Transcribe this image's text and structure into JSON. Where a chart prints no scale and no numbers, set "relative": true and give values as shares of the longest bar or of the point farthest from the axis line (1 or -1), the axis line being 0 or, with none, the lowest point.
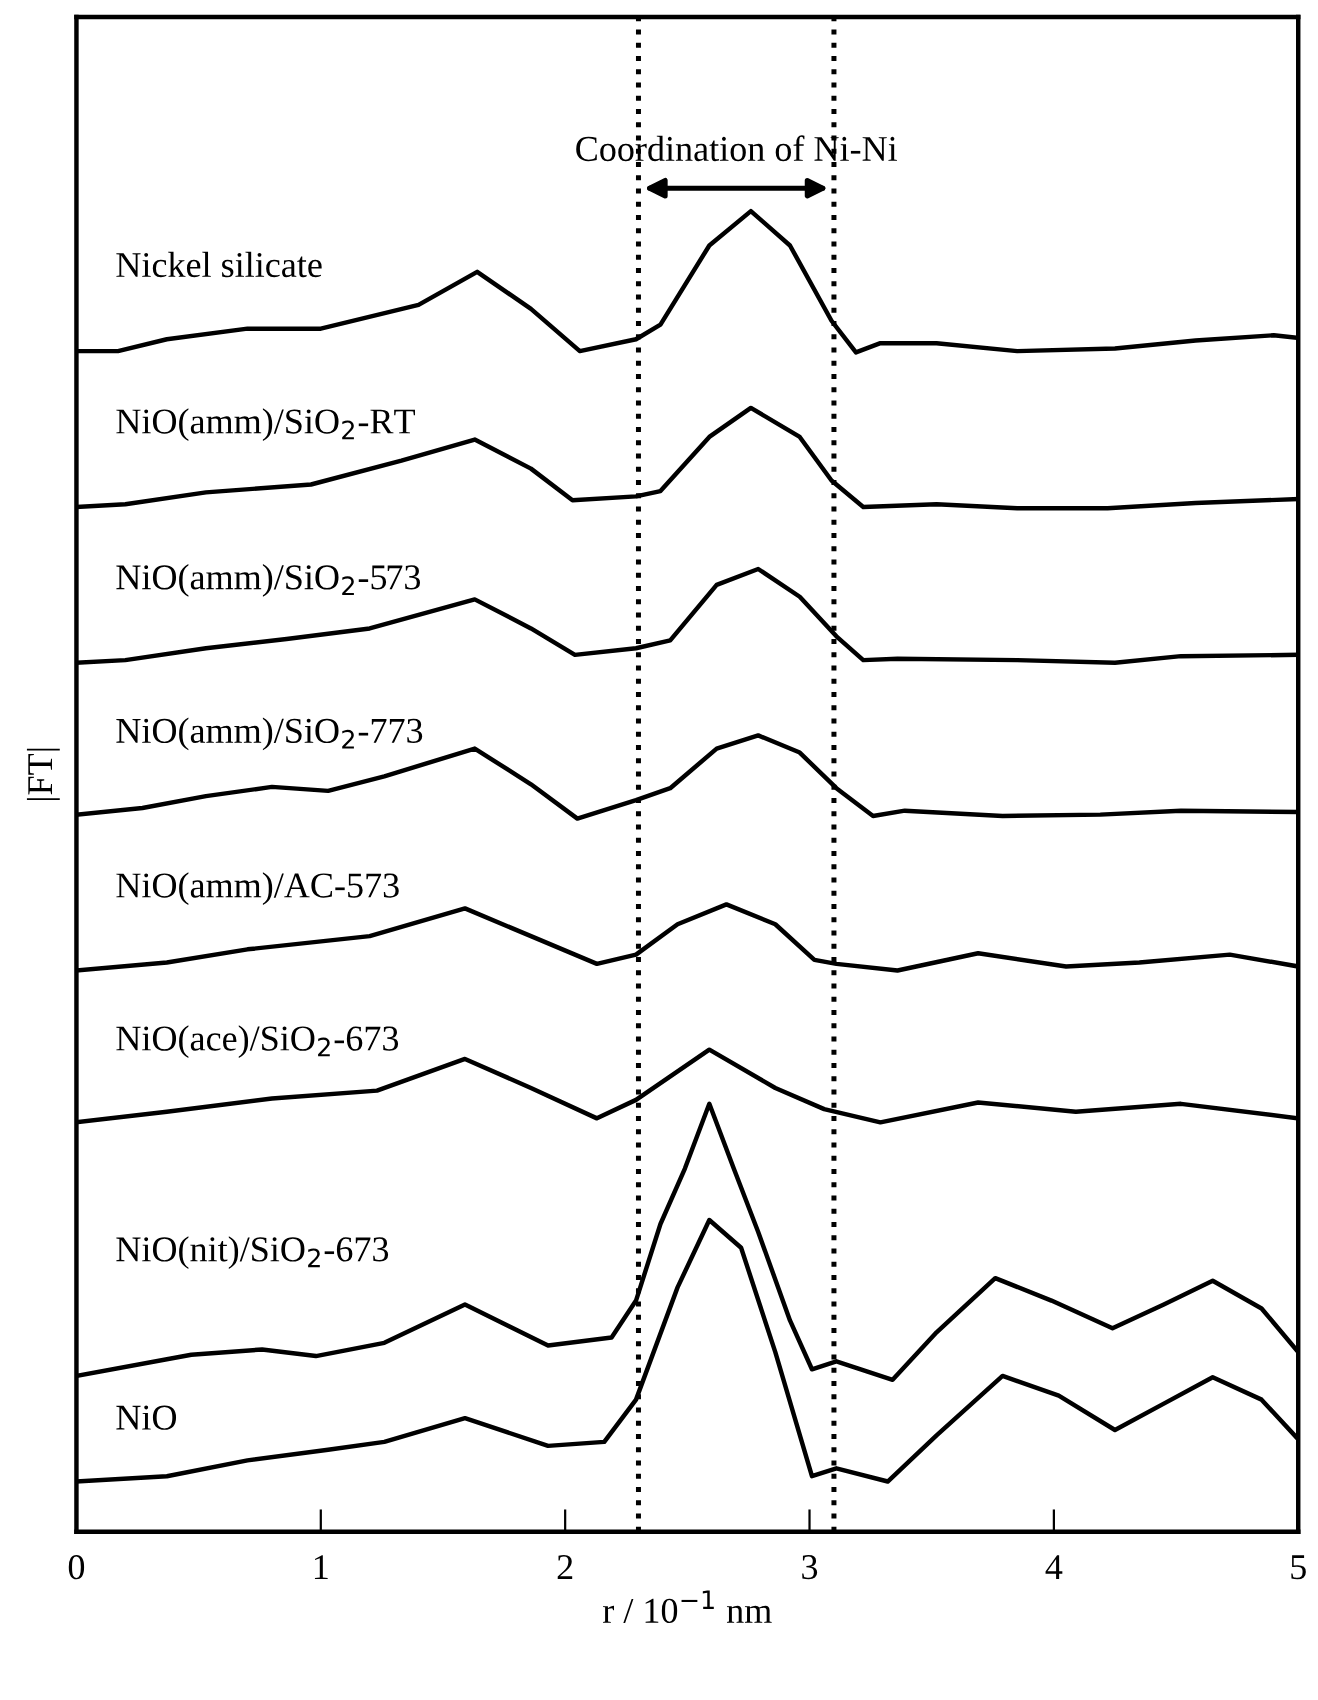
{
  "chart_data": {
    "type": "line",
    "relative": true,
    "xlabel": "r / 10$^{−1}$ nm",
    "ylabel": "|FT|",
    "xlim": [
      0,
      5
    ],
    "xticks": [
      0,
      1,
      2,
      3,
      4,
      5
    ],
    "tick_labels": "x",
    "grid": false,
    "legend": false,
    "marker": "none",
    "line_style": "solid",
    "ref_lines": [
      {
        "axis": "x",
        "value": 2.3,
        "line_style": "dotted",
        "color": "#000000"
      },
      {
        "axis": "x",
        "value": 3.1,
        "line_style": "dotted",
        "color": "#000000"
      }
    ],
    "annotations": [
      "Coordination of Ni-Ni"
    ],
    "series": [
      {
        "name": "Nickel silicate",
        "color": "#000000",
        "x": [
          0,
          0.17,
          0.37,
          0.7,
          1.0,
          1.4,
          1.64,
          1.86,
          2.06,
          2.29,
          2.39,
          2.59,
          2.76,
          2.92,
          3.09,
          3.19,
          3.29,
          3.52,
          3.85,
          4.25,
          4.58,
          4.9,
          5.0
        ],
        "values": [
          0.894,
          0.894,
          0.903,
          0.911,
          0.911,
          0.929,
          0.954,
          0.926,
          0.894,
          0.903,
          0.914,
          0.974,
          1.0,
          0.974,
          0.917,
          0.893,
          0.9,
          0.9,
          0.894,
          0.896,
          0.902,
          0.906,
          0.904
        ]
      },
      {
        "name": "NiO(amm)/SiO$_{2}$-RT",
        "color": "#000000",
        "x": [
          0,
          0.2,
          0.53,
          0.96,
          1.33,
          1.63,
          1.86,
          2.03,
          2.29,
          2.39,
          2.59,
          2.76,
          2.96,
          3.09,
          3.22,
          3.52,
          3.85,
          4.22,
          4.58,
          5.0
        ],
        "values": [
          0.776,
          0.778,
          0.787,
          0.793,
          0.811,
          0.827,
          0.805,
          0.781,
          0.784,
          0.788,
          0.829,
          0.851,
          0.829,
          0.796,
          0.776,
          0.778,
          0.775,
          0.775,
          0.779,
          0.782
        ]
      },
      {
        "name": "NiO(amm)/SiO$_{2}$-573",
        "color": "#000000",
        "x": [
          0,
          0.2,
          0.53,
          0.86,
          1.2,
          1.63,
          1.86,
          2.04,
          2.29,
          2.43,
          2.62,
          2.79,
          2.96,
          3.11,
          3.22,
          3.36,
          3.85,
          4.25,
          4.52,
          5.0
        ],
        "values": [
          0.658,
          0.66,
          0.669,
          0.676,
          0.684,
          0.706,
          0.684,
          0.664,
          0.669,
          0.675,
          0.717,
          0.729,
          0.708,
          0.678,
          0.66,
          0.661,
          0.66,
          0.658,
          0.663,
          0.664
        ]
      },
      {
        "name": "NiO(amm)/SiO$_{2}$-773",
        "color": "#000000",
        "x": [
          0,
          0.27,
          0.53,
          0.8,
          1.03,
          1.26,
          1.63,
          1.86,
          2.05,
          2.29,
          2.43,
          2.62,
          2.79,
          2.96,
          3.11,
          3.26,
          3.39,
          3.79,
          4.19,
          4.52,
          5.0
        ],
        "values": [
          0.543,
          0.548,
          0.557,
          0.564,
          0.561,
          0.572,
          0.593,
          0.566,
          0.54,
          0.554,
          0.563,
          0.593,
          0.603,
          0.59,
          0.563,
          0.542,
          0.546,
          0.542,
          0.543,
          0.546,
          0.545
        ]
      },
      {
        "name": "NiO(amm)/AC-573",
        "color": "#000000",
        "x": [
          0,
          0.37,
          0.7,
          1.2,
          1.59,
          1.86,
          2.13,
          2.29,
          2.46,
          2.66,
          2.86,
          3.02,
          3.11,
          3.36,
          3.69,
          4.05,
          4.35,
          4.72,
          5.0
        ],
        "values": [
          0.425,
          0.431,
          0.441,
          0.451,
          0.472,
          0.451,
          0.43,
          0.437,
          0.46,
          0.475,
          0.46,
          0.433,
          0.43,
          0.425,
          0.438,
          0.428,
          0.431,
          0.437,
          0.428
        ]
      },
      {
        "name": "NiO(ace)/SiO$_{2}$-673",
        "color": "#000000",
        "x": [
          0,
          0.37,
          0.8,
          1.23,
          1.59,
          1.86,
          2.13,
          2.29,
          2.59,
          2.86,
          3.06,
          3.29,
          3.69,
          4.09,
          4.52,
          5.0
        ],
        "values": [
          0.31,
          0.318,
          0.328,
          0.334,
          0.358,
          0.336,
          0.313,
          0.327,
          0.365,
          0.336,
          0.32,
          0.31,
          0.325,
          0.318,
          0.324,
          0.313
        ]
      },
      {
        "name": "NiO(nit)/SiO$_{2}$-673",
        "color": "#000000",
        "x": [
          0,
          0.47,
          0.76,
          0.98,
          1.26,
          1.59,
          1.93,
          2.19,
          2.29,
          2.39,
          2.49,
          2.59,
          2.69,
          2.79,
          2.92,
          3.01,
          3.11,
          3.34,
          3.52,
          3.76,
          3.99,
          4.24,
          4.45,
          4.65,
          4.85,
          5.0
        ],
        "values": [
          0.118,
          0.134,
          0.138,
          0.133,
          0.143,
          0.172,
          0.141,
          0.147,
          0.175,
          0.233,
          0.275,
          0.324,
          0.275,
          0.227,
          0.16,
          0.123,
          0.129,
          0.115,
          0.151,
          0.192,
          0.175,
          0.154,
          0.172,
          0.19,
          0.169,
          0.136
        ]
      },
      {
        "name": "NiO",
        "color": "#000000",
        "x": [
          0,
          0.37,
          0.7,
          1.03,
          1.26,
          1.59,
          1.93,
          2.16,
          2.29,
          2.46,
          2.59,
          2.72,
          2.86,
          3.01,
          3.11,
          3.32,
          3.52,
          3.79,
          4.02,
          4.25,
          4.45,
          4.65,
          4.85,
          5.0
        ],
        "values": [
          0.038,
          0.042,
          0.054,
          0.062,
          0.068,
          0.086,
          0.065,
          0.068,
          0.1,
          0.185,
          0.236,
          0.215,
          0.136,
          0.042,
          0.048,
          0.038,
          0.073,
          0.118,
          0.103,
          0.077,
          0.097,
          0.117,
          0.1,
          0.07
        ]
      }
    ]
  }
}
